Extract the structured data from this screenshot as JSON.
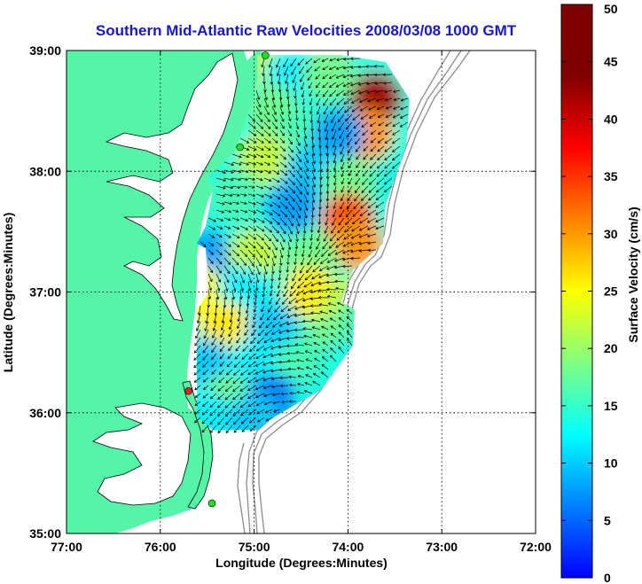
{
  "chart_data": {
    "type": "heatmap",
    "title": "Southern Mid-Atlantic Raw Velocities 2008/03/08 1000 GMT",
    "xlabel": "Longitude (Degrees:Minutes)",
    "ylabel": "Latitude (Degrees:Minutes)",
    "x_ticks": [
      "77:00",
      "76:00",
      "75:00",
      "74:00",
      "73:00",
      "72:00"
    ],
    "y_ticks": [
      "39:00",
      "38:00",
      "37:00",
      "36:00",
      "35:00"
    ],
    "xlim": [
      -77,
      -72
    ],
    "ylim": [
      35,
      39
    ],
    "grid": true,
    "colorbar": {
      "label": "Surface Velocity (cm/s)",
      "min": 0,
      "max": 50,
      "ticks": [
        "0",
        "5",
        "10",
        "15",
        "20",
        "25",
        "30",
        "35",
        "40",
        "45",
        "50"
      ]
    },
    "velocity_field": [
      {
        "lon": -74.8,
        "lat": 38.9,
        "speed": 22
      },
      {
        "lon": -74.6,
        "lat": 38.8,
        "speed": 12
      },
      {
        "lon": -74.2,
        "lat": 38.8,
        "speed": 18
      },
      {
        "lon": -73.7,
        "lat": 38.6,
        "speed": 42
      },
      {
        "lon": -73.8,
        "lat": 38.3,
        "speed": 30
      },
      {
        "lon": -74.8,
        "lat": 38.5,
        "speed": 18
      },
      {
        "lon": -74.5,
        "lat": 38.3,
        "speed": 16
      },
      {
        "lon": -74.1,
        "lat": 38.3,
        "speed": 8
      },
      {
        "lon": -74.9,
        "lat": 38.1,
        "speed": 22
      },
      {
        "lon": -74.4,
        "lat": 38.0,
        "speed": 10
      },
      {
        "lon": -74.0,
        "lat": 37.9,
        "speed": 18
      },
      {
        "lon": -75.2,
        "lat": 37.8,
        "speed": 16
      },
      {
        "lon": -74.6,
        "lat": 37.7,
        "speed": 8
      },
      {
        "lon": -74.0,
        "lat": 37.6,
        "speed": 34
      },
      {
        "lon": -73.9,
        "lat": 37.4,
        "speed": 30
      },
      {
        "lon": -75.5,
        "lat": 37.3,
        "speed": 8
      },
      {
        "lon": -75.0,
        "lat": 37.3,
        "speed": 22
      },
      {
        "lon": -74.4,
        "lat": 37.3,
        "speed": 18
      },
      {
        "lon": -75.6,
        "lat": 37.0,
        "speed": 25
      },
      {
        "lon": -75.1,
        "lat": 37.0,
        "speed": 12
      },
      {
        "lon": -74.4,
        "lat": 37.0,
        "speed": 26
      },
      {
        "lon": -74.0,
        "lat": 36.9,
        "speed": 22
      },
      {
        "lon": -75.3,
        "lat": 36.7,
        "speed": 26
      },
      {
        "lon": -74.8,
        "lat": 36.7,
        "speed": 10
      },
      {
        "lon": -74.2,
        "lat": 36.6,
        "speed": 18
      },
      {
        "lon": -73.8,
        "lat": 36.8,
        "speed": 16
      },
      {
        "lon": -75.5,
        "lat": 36.4,
        "speed": 10
      },
      {
        "lon": -75.0,
        "lat": 36.4,
        "speed": 12
      },
      {
        "lon": -74.5,
        "lat": 36.4,
        "speed": 16
      },
      {
        "lon": -74.0,
        "lat": 36.4,
        "speed": 14
      },
      {
        "lon": -75.3,
        "lat": 36.1,
        "speed": 18
      },
      {
        "lon": -74.8,
        "lat": 36.1,
        "speed": 6
      },
      {
        "lon": -74.3,
        "lat": 36.1,
        "speed": 14
      },
      {
        "lon": -75.5,
        "lat": 35.95,
        "speed": 12
      },
      {
        "lon": -75.0,
        "lat": 35.95,
        "speed": 10
      }
    ],
    "stations": [
      {
        "lon": -74.88,
        "lat": 38.96,
        "color": "#22dd22"
      },
      {
        "lon": -75.15,
        "lat": 38.2,
        "color": "#22dd22"
      },
      {
        "lon": -75.7,
        "lat": 36.18,
        "color": "#ee2222"
      },
      {
        "lon": -75.45,
        "lat": 35.25,
        "color": "#22dd22"
      }
    ]
  }
}
